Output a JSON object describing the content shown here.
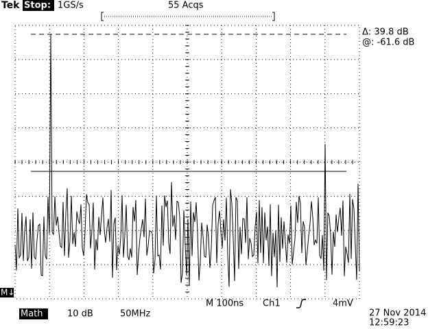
{
  "header": {
    "brand": "Tek",
    "status": "Stop:",
    "sample_rate": "1GS/s",
    "acquisitions": "55 Acqs"
  },
  "readout": {
    "delta": "Δ: 39.8 dB",
    "at": "@: -61.6 dB"
  },
  "ref_marker": "M↓",
  "status_bar": {
    "timebase": "M 100ns",
    "channel": "Ch1",
    "trigger_level": "4mV",
    "math": "Math",
    "scale": "10 dB",
    "center": "50MHz",
    "date": "27 Nov 2014",
    "time": "12:59:23"
  }
}
